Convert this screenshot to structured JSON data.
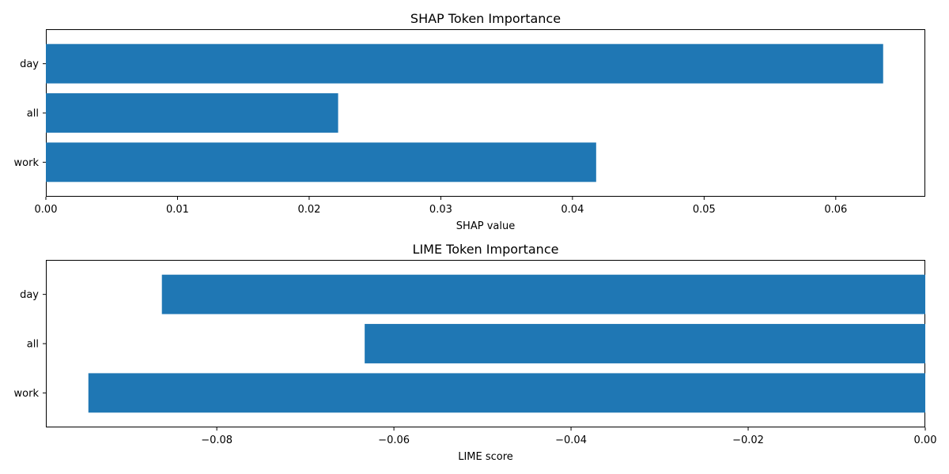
{
  "chart_data": [
    {
      "type": "bar",
      "orientation": "horizontal",
      "title": "SHAP Token Importance",
      "xlabel": "SHAP value",
      "ylabel": "",
      "categories": [
        "work",
        "all",
        "day"
      ],
      "values": [
        0.0418,
        0.0222,
        0.0636
      ],
      "xlim": [
        0,
        0.0668
      ],
      "xticks": [
        0.0,
        0.01,
        0.02,
        0.03,
        0.04,
        0.05,
        0.06
      ],
      "xtick_labels": [
        "0.00",
        "0.01",
        "0.02",
        "0.03",
        "0.04",
        "0.05",
        "0.06"
      ],
      "grid": false,
      "color": "#1f77b4"
    },
    {
      "type": "bar",
      "orientation": "horizontal",
      "title": "LIME Token Importance",
      "xlabel": "LIME score",
      "ylabel": "",
      "categories": [
        "work",
        "all",
        "day"
      ],
      "values": [
        -0.0945,
        -0.0633,
        -0.0862
      ],
      "xlim": [
        -0.0993,
        0
      ],
      "xticks": [
        -0.08,
        -0.06,
        -0.04,
        -0.02,
        0.0
      ],
      "xtick_labels": [
        "−0.08",
        "−0.06",
        "−0.04",
        "−0.02",
        "0.00"
      ],
      "grid": false,
      "color": "#1f77b4"
    }
  ]
}
